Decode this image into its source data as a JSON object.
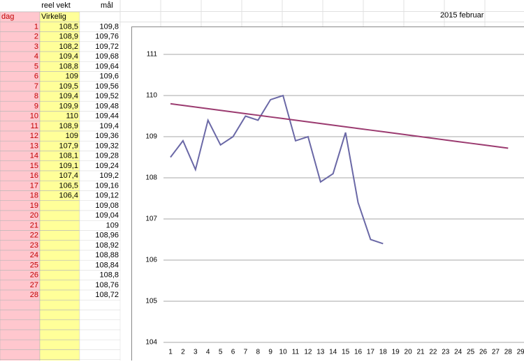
{
  "sheet": {
    "reel": "reel vekt",
    "maal": "mål",
    "dag": "dag",
    "virkelig": "Virkelig",
    "month": "2015 februar",
    "rows": [
      {
        "dag": 1,
        "virkelig": "108,5",
        "mal": "109,8"
      },
      {
        "dag": 2,
        "virkelig": "108,9",
        "mal": "109,76"
      },
      {
        "dag": 3,
        "virkelig": "108,2",
        "mal": "109,72"
      },
      {
        "dag": 4,
        "virkelig": "109,4",
        "mal": "109,68"
      },
      {
        "dag": 5,
        "virkelig": "108,8",
        "mal": "109,64"
      },
      {
        "dag": 6,
        "virkelig": "109",
        "mal": "109,6"
      },
      {
        "dag": 7,
        "virkelig": "109,5",
        "mal": "109,56"
      },
      {
        "dag": 8,
        "virkelig": "109,4",
        "mal": "109,52"
      },
      {
        "dag": 9,
        "virkelig": "109,9",
        "mal": "109,48"
      },
      {
        "dag": 10,
        "virkelig": "110",
        "mal": "109,44"
      },
      {
        "dag": 11,
        "virkelig": "108,9",
        "mal": "109,4"
      },
      {
        "dag": 12,
        "virkelig": "109",
        "mal": "109,36"
      },
      {
        "dag": 13,
        "virkelig": "107,9",
        "mal": "109,32"
      },
      {
        "dag": 14,
        "virkelig": "108,1",
        "mal": "109,28"
      },
      {
        "dag": 15,
        "virkelig": "109,1",
        "mal": "109,24"
      },
      {
        "dag": 16,
        "virkelig": "107,4",
        "mal": "109,2"
      },
      {
        "dag": 17,
        "virkelig": "106,5",
        "mal": "109,16"
      },
      {
        "dag": 18,
        "virkelig": "106,4",
        "mal": "109,12"
      },
      {
        "dag": 19,
        "mal": "109,08"
      },
      {
        "dag": 20,
        "mal": "109,04"
      },
      {
        "dag": 21,
        "mal": "109"
      },
      {
        "dag": 22,
        "mal": "108,96"
      },
      {
        "dag": 23,
        "mal": "108,92"
      },
      {
        "dag": 24,
        "mal": "108,88"
      },
      {
        "dag": 25,
        "mal": "108,84"
      },
      {
        "dag": 26,
        "mal": "108,8"
      },
      {
        "dag": 27,
        "mal": "108,76"
      },
      {
        "dag": 28,
        "mal": "108,72"
      }
    ]
  },
  "chart_data": {
    "type": "line",
    "categories": [
      1,
      2,
      3,
      4,
      5,
      6,
      7,
      8,
      9,
      10,
      11,
      12,
      13,
      14,
      15,
      16,
      17,
      18,
      19,
      20,
      21,
      22,
      23,
      24,
      25,
      26,
      27,
      28,
      29
    ],
    "series": [
      {
        "color": "#6a68a6",
        "values": [
          108.5,
          108.9,
          108.2,
          109.4,
          108.8,
          109,
          109.5,
          109.4,
          109.9,
          110,
          108.9,
          109,
          107.9,
          108.1,
          109.1,
          107.4,
          106.5,
          106.4,
          null,
          null,
          null,
          null,
          null,
          null,
          null,
          null,
          null,
          null,
          null
        ]
      },
      {
        "color": "#9b3b70",
        "values": [
          109.8,
          109.76,
          109.72,
          109.68,
          109.64,
          109.6,
          109.56,
          109.52,
          109.48,
          109.44,
          109.4,
          109.36,
          109.32,
          109.28,
          109.24,
          109.2,
          109.16,
          109.12,
          109.08,
          109.04,
          109,
          108.96,
          108.92,
          108.88,
          108.84,
          108.8,
          108.76,
          108.72,
          null
        ]
      }
    ],
    "ylim": [
      104,
      111
    ],
    "yticks": [
      104,
      105,
      106,
      107,
      108,
      109,
      110,
      111
    ],
    "grid": true
  }
}
